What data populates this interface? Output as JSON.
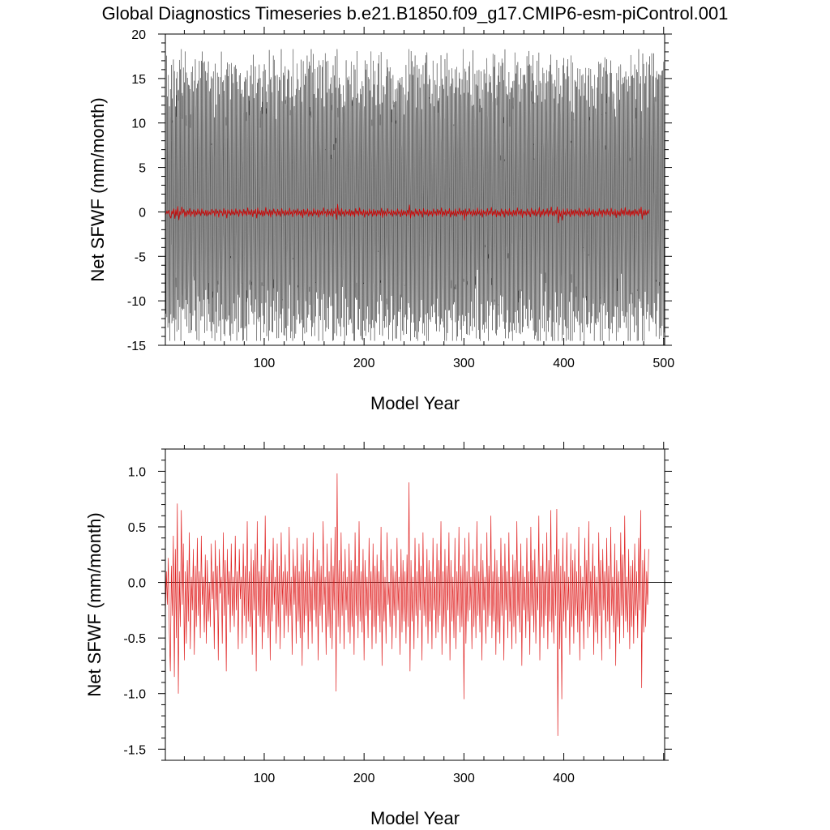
{
  "title": "Global Diagnostics Timeseries b.e21.B1850.f09_g17.CMIP6-esm-piControl.001",
  "chart_data": [
    {
      "type": "line",
      "xlabel": "Model Year",
      "ylabel": "Net SFWF (mm/month)",
      "xlim": [
        1,
        501
      ],
      "ylim": [
        -15,
        20
      ],
      "xticks": [
        100,
        200,
        300,
        400,
        500
      ],
      "yticks": [
        -15,
        -10,
        -5,
        0,
        5,
        10,
        15,
        20
      ],
      "ytick_labels": [
        "-15",
        "-10",
        "-5",
        "0",
        "5",
        "10",
        "15",
        "20"
      ],
      "grid": false,
      "series": [
        {
          "style": "monthly",
          "color": "#000000",
          "seasonal_envelope": {
            "max_typical": 13,
            "min_typical": -10,
            "max_extreme": 18.3,
            "min_extreme": -14.5
          },
          "x_start": 1,
          "x_end": 501,
          "points_per_year": 12
        },
        {
          "style": "annual_mean",
          "color": "#d00000",
          "source": "chart_data.1.series.0.values"
        }
      ]
    },
    {
      "type": "line",
      "xlabel": "Model Year",
      "ylabel": "Net SFWF (mm/month)",
      "xlim": [
        1,
        501
      ],
      "ylim": [
        -1.6,
        1.2
      ],
      "xticks": [
        100,
        200,
        300,
        400
      ],
      "yticks": [
        -1.5,
        -1.0,
        -0.5,
        0.0,
        0.5,
        1.0
      ],
      "ytick_labels": [
        "-1.5",
        "-1.0",
        "-0.5",
        "0.0",
        "0.5",
        "1.0"
      ],
      "reference_line": 0.0,
      "grid": false,
      "series": [
        {
          "color": "#e02020",
          "x_start": 1,
          "values": [
            -0.3,
            0.1,
            -0.2,
            0.22,
            -0.45,
            -0.8,
            0.15,
            -0.3,
            0.42,
            -0.85,
            0.3,
            -0.5,
            0.71,
            -1.0,
            0.1,
            -0.4,
            0.65,
            -0.2,
            0.35,
            -0.7,
            0.1,
            -0.55,
            0.2,
            -0.35,
            0.45,
            -0.6,
            0.05,
            -0.25,
            0.3,
            -0.65,
            0.15,
            -0.4,
            0.4,
            -0.3,
            0.1,
            -0.5,
            0.42,
            -0.2,
            0.05,
            -0.45,
            0.25,
            -0.55,
            0.2,
            -0.35,
            0.0,
            -0.4,
            0.35,
            -0.15,
            0.1,
            -0.6,
            0.38,
            -0.25,
            0.15,
            -0.7,
            0.3,
            -0.1,
            0.05,
            -0.55,
            0.45,
            -0.3,
            0.2,
            -0.8,
            0.3,
            -0.2,
            0.1,
            -0.45,
            0.35,
            -0.3,
            0.05,
            -0.4,
            0.42,
            -0.25,
            0.1,
            -0.6,
            0.3,
            -0.15,
            0.05,
            -0.55,
            0.35,
            -0.3,
            0.15,
            -0.5,
            0.55,
            -0.35,
            0.1,
            -0.4,
            0.3,
            -0.65,
            0.2,
            -0.25,
            0.35,
            -0.8,
            0.55,
            -0.3,
            0.1,
            -0.4,
            0.25,
            -0.6,
            0.15,
            -0.45,
            0.6,
            -0.3,
            0.05,
            -0.5,
            0.3,
            -0.7,
            0.2,
            -0.35,
            0.4,
            -0.2,
            0.05,
            -0.55,
            0.35,
            -0.4,
            0.15,
            -0.6,
            0.45,
            -0.2,
            0.1,
            -0.5,
            0.25,
            -0.3,
            0.1,
            -0.45,
            0.5,
            -0.3,
            0.05,
            -0.65,
            0.3,
            -0.2,
            0.15,
            -0.55,
            0.4,
            -0.35,
            0.1,
            -0.5,
            0.25,
            -0.75,
            0.35,
            -0.45,
            0.1,
            -0.3,
            0.4,
            -0.6,
            0.2,
            -0.35,
            0.05,
            -0.55,
            0.45,
            -0.25,
            0.1,
            -0.4,
            0.3,
            -0.7,
            0.2,
            -0.3,
            0.15,
            -0.45,
            0.55,
            -0.2,
            0.05,
            -0.65,
            0.35,
            -0.4,
            0.1,
            -0.5,
            0.4,
            -0.6,
            0.15,
            -0.25,
            0.5,
            -0.98,
            0.98,
            -0.4,
            0.2,
            -0.55,
            0.45,
            -0.3,
            0.1,
            -0.6,
            0.3,
            -0.25,
            0.05,
            -0.45,
            0.35,
            -0.55,
            0.2,
            -0.4,
            0.1,
            -0.65,
            0.45,
            -0.3,
            0.15,
            -0.5,
            0.55,
            -0.35,
            0.1,
            -0.45,
            0.3,
            -0.7,
            0.2,
            -0.3,
            0.05,
            -0.5,
            0.4,
            -0.25,
            0.1,
            -0.6,
            0.35,
            -0.4,
            0.15,
            -0.55,
            0.25,
            -0.3,
            0.1,
            -0.45,
            0.5,
            -0.75,
            0.2,
            -0.35,
            0.05,
            -0.55,
            0.45,
            -0.2,
            0.0,
            -0.4,
            0.3,
            -0.6,
            0.15,
            -0.3,
            0.1,
            -0.5,
            0.4,
            -0.25,
            0.05,
            -0.65,
            0.3,
            -0.45,
            0.2,
            -0.35,
            0.1,
            -0.55,
            0.25,
            -0.4,
            0.9,
            -0.8,
            0.2,
            -0.35,
            0.05,
            -0.6,
            0.4,
            -0.3,
            0.1,
            -0.5,
            0.35,
            -0.25,
            0.15,
            -0.7,
            0.45,
            -0.3,
            0.05,
            -0.4,
            0.3,
            -0.55,
            0.2,
            -0.35,
            0.1,
            -0.6,
            0.4,
            -0.25,
            0.05,
            -0.5,
            0.35,
            -0.45,
            0.2,
            -0.3,
            0.55,
            -0.65,
            0.1,
            -0.4,
            0.3,
            -0.55,
            0.15,
            -0.25,
            0.45,
            -0.7,
            0.2,
            -0.35,
            0.05,
            -0.5,
            0.4,
            -0.6,
            0.1,
            -0.3,
            0.5,
            -0.45,
            0.15,
            -0.4,
            0.25,
            -1.05,
            0.4,
            -0.55,
            0.1,
            -0.35,
            0.45,
            -0.25,
            0.05,
            -0.6,
            0.3,
            -0.4,
            0.15,
            -0.5,
            0.55,
            -0.3,
            0.1,
            -0.45,
            0.35,
            -0.7,
            0.2,
            -0.25,
            0.05,
            -0.55,
            0.45,
            -0.4,
            0.15,
            -0.3,
            0.6,
            -0.5,
            0.1,
            -0.35,
            0.3,
            -0.65,
            0.2,
            -0.45,
            0.05,
            -0.55,
            0.4,
            -0.3,
            0.15,
            -0.7,
            0.35,
            -0.25,
            0.1,
            -0.5,
            0.45,
            -0.35,
            0.05,
            -0.6,
            0.25,
            -0.4,
            0.2,
            -0.55,
            0.55,
            -0.3,
            0.1,
            -0.45,
            0.35,
            -0.75,
            0.15,
            -0.25,
            0.05,
            -0.5,
            0.4,
            -0.35,
            0.1,
            -0.65,
            0.5,
            -0.3,
            0.2,
            -0.45,
            0.3,
            -0.55,
            0.05,
            -0.25,
            0.6,
            -0.7,
            0.15,
            -0.4,
            0.35,
            -0.5,
            0.1,
            -0.3,
            0.45,
            -0.6,
            0.2,
            -0.35,
            0.65,
            -0.45,
            0.1,
            -0.55,
            0.25,
            -0.3,
            0.66,
            -1.38,
            0.3,
            -0.6,
            0.15,
            -1.05,
            0.4,
            -0.35,
            0.1,
            -0.5,
            0.45,
            -0.25,
            0.05,
            -0.65,
            0.35,
            -0.4,
            0.2,
            -0.55,
            0.3,
            -0.3,
            0.1,
            -0.45,
            0.5,
            -0.7,
            0.15,
            -0.35,
            0.05,
            -0.6,
            0.4,
            -0.25,
            0.2,
            -0.5,
            0.55,
            -0.4,
            0.1,
            -0.3,
            0.35,
            -0.65,
            0.15,
            -0.45,
            0.05,
            -0.55,
            0.45,
            -0.3,
            0.2,
            -0.7,
            0.3,
            -0.25,
            0.1,
            -0.5,
            0.4,
            -0.35,
            0.15,
            -0.6,
            0.5,
            -0.3,
            0.05,
            -0.45,
            0.35,
            -0.75,
            0.2,
            -0.4,
            0.1,
            -0.55,
            0.45,
            -0.3,
            0.25,
            -0.5,
            0.6,
            -0.35,
            0.05,
            -0.45,
            0.3,
            -0.6,
            0.15,
            -0.4,
            0.2,
            -0.55,
            0.35,
            -0.3,
            0.1,
            -0.5,
            0.4,
            -0.25,
            0.65,
            -0.95,
            0.2,
            -0.45,
            0.3,
            -0.4,
            0.1,
            -0.2,
            0.3
          ]
        }
      ]
    }
  ]
}
